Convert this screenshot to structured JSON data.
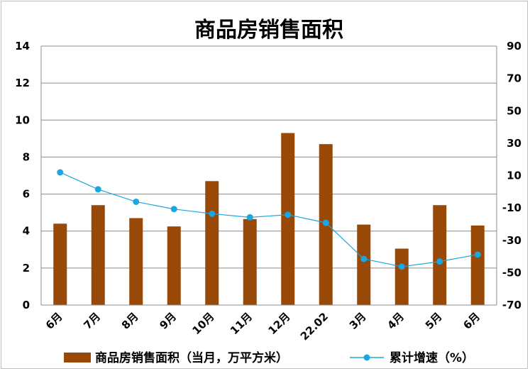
{
  "chart_data": {
    "type": "bar",
    "title": "商品房销售面积",
    "categories": [
      "6月",
      "7月",
      "8月",
      "9月",
      "10月",
      "11月",
      "12月",
      "22.02",
      "3月",
      "4月",
      "5月",
      "6月"
    ],
    "series": [
      {
        "name": "商品房销售面积（当月，万平方米）",
        "type": "bar",
        "axis": "left",
        "color": "#984807",
        "values": [
          4.4,
          5.4,
          4.7,
          4.25,
          6.7,
          4.65,
          9.3,
          8.7,
          4.35,
          3.05,
          5.4,
          4.3
        ]
      },
      {
        "name": "累计增速（%）",
        "type": "line",
        "axis": "right",
        "color": "#1aa6e0",
        "values": [
          12,
          1.5,
          -6.2,
          -10.7,
          -13.6,
          -15.8,
          -14.2,
          -19.2,
          -41.5,
          -46.3,
          -43.1,
          -38.8
        ]
      }
    ],
    "ylim_left": [
      0,
      14
    ],
    "yticks_left": [
      "0",
      "2",
      "4",
      "6",
      "8",
      "10",
      "12",
      "14"
    ],
    "ylim_right": [
      -70,
      90
    ],
    "yticks_right": [
      "-70",
      "-50",
      "-30",
      "-10",
      "10",
      "30",
      "50",
      "70",
      "90"
    ],
    "grid": true,
    "legend_position": "bottom"
  }
}
